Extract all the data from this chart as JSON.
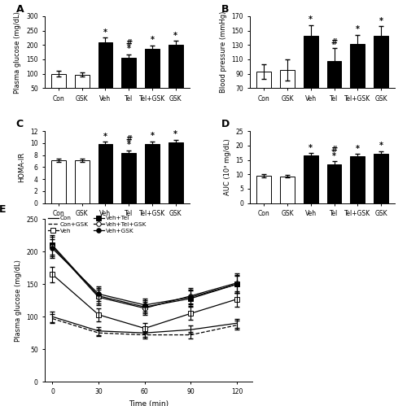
{
  "categories": [
    "Con",
    "GSK",
    "Veh",
    "Tel",
    "Tel+GSK",
    "GSK"
  ],
  "A_values": [
    100,
    97,
    210,
    155,
    188,
    202
  ],
  "A_errors": [
    10,
    8,
    15,
    12,
    10,
    12
  ],
  "A_ylabel": "Plasma glucose (mg/dL)",
  "A_ylim": [
    50,
    300
  ],
  "A_yticks": [
    50,
    100,
    150,
    200,
    250,
    300
  ],
  "A_stars": [
    "",
    "",
    "*",
    "*\n#",
    "*",
    "*"
  ],
  "B_values": [
    93,
    95,
    143,
    108,
    132,
    143
  ],
  "B_errors": [
    10,
    15,
    15,
    18,
    12,
    13
  ],
  "B_ylabel": "Blood pressure (mmHg)",
  "B_ylim": [
    70,
    170
  ],
  "B_yticks": [
    70,
    90,
    110,
    130,
    150,
    170
  ],
  "B_stars": [
    "",
    "",
    "*",
    "#",
    "*",
    "*"
  ],
  "C_values": [
    7.1,
    7.1,
    9.8,
    8.3,
    9.9,
    10.1
  ],
  "C_errors": [
    0.3,
    0.3,
    0.4,
    0.5,
    0.4,
    0.4
  ],
  "C_ylabel": "HOMA-IR",
  "C_ylim": [
    0,
    12
  ],
  "C_yticks": [
    0,
    2,
    4,
    6,
    8,
    10,
    12
  ],
  "C_stars": [
    "",
    "",
    "*",
    "*\n#",
    "*",
    "*"
  ],
  "D_values": [
    9.5,
    9.3,
    16.5,
    13.5,
    16.2,
    17.0
  ],
  "D_errors": [
    0.5,
    0.5,
    0.8,
    1.0,
    0.8,
    1.0
  ],
  "D_ylabel": "AUC (10³ mg/dL)",
  "D_ylim": [
    0,
    25
  ],
  "D_yticks": [
    0,
    5,
    10,
    15,
    20,
    25
  ],
  "D_stars": [
    "",
    "",
    "*",
    "*\n#",
    "*",
    "*"
  ],
  "E_time": [
    0,
    30,
    60,
    90,
    120
  ],
  "E_Con": [
    100,
    78,
    75,
    80,
    90
  ],
  "E_Con_err": [
    8,
    6,
    6,
    6,
    7
  ],
  "E_ConGSK": [
    97,
    75,
    72,
    72,
    87
  ],
  "E_ConGSK_err": [
    7,
    5,
    5,
    5,
    7
  ],
  "E_Veh": [
    165,
    103,
    82,
    105,
    127
  ],
  "E_Veh_err": [
    12,
    10,
    8,
    10,
    12
  ],
  "E_VehTel": [
    210,
    132,
    115,
    128,
    150
  ],
  "E_VehTel_err": [
    15,
    12,
    10,
    12,
    14
  ],
  "E_VehTelGSK": [
    208,
    130,
    113,
    132,
    152
  ],
  "E_VehTelGSK_err": [
    15,
    12,
    10,
    12,
    15
  ],
  "E_VehGSK": [
    205,
    135,
    118,
    130,
    150
  ],
  "E_VehGSK_err": [
    14,
    11,
    10,
    11,
    13
  ],
  "E_ylabel": "Plasma glucose (mg/dL)",
  "E_xlabel": "Time (min)",
  "E_ylim": [
    0,
    250
  ],
  "E_yticks": [
    0,
    50,
    100,
    150,
    200,
    250
  ]
}
